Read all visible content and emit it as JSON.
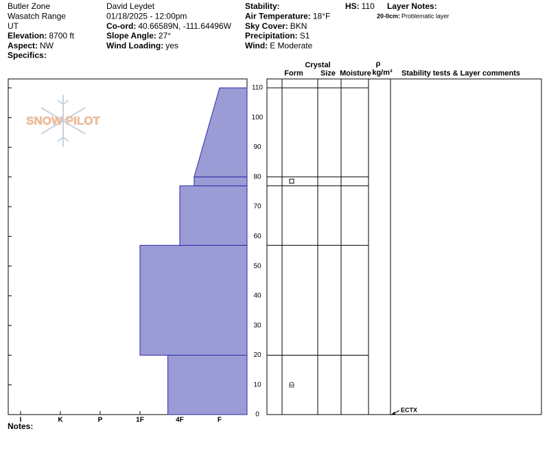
{
  "header": {
    "columns": [
      [
        {
          "text": "Butler Zone"
        },
        {
          "text": "Wasatch Range"
        },
        {
          "text": "UT"
        },
        {
          "label": "Elevation:",
          "value": "8700 ft"
        },
        {
          "label": "Aspect:",
          "value": "NW"
        },
        {
          "label": "Specifics:"
        }
      ],
      [
        {
          "text": "David Leydet"
        },
        {
          "text": "01/18/2025 - 12:00pm"
        },
        {
          "label": "Co-ord:",
          "value": "40.66589N, -111.64496W"
        },
        {
          "label": "Slope Angle:",
          "value": "27°"
        },
        {
          "label": "Wind Loading:",
          "value": "yes"
        }
      ],
      [
        {
          "label": "Stability:"
        },
        {
          "label": "Air Temperature:",
          "value": "18°F"
        },
        {
          "label": "Sky Cover:",
          "value": "BKN"
        },
        {
          "label": "Precipitation:",
          "value": "S1"
        },
        {
          "label": "Wind:",
          "value": "E Moderate"
        }
      ],
      [
        {
          "label": "HS:",
          "value": "110"
        }
      ]
    ],
    "layer_notes": {
      "title": "Layer Notes:",
      "notes": [
        {
          "label": "20-0cm:",
          "value": "Problematic layer"
        }
      ]
    }
  },
  "logo": "SNOW PILOT",
  "table_headers": {
    "crystal": "Crystal",
    "form": "Form",
    "size": "Size",
    "moisture": "Moisture",
    "rho": "ρ",
    "density_unit": "kg/m³",
    "comments": "Stability tests & Layer comments"
  },
  "notes": "Notes:",
  "chart_data": {
    "type": "snow_profile",
    "ylim": [
      0,
      113
    ],
    "yticks": [
      0,
      10,
      20,
      30,
      40,
      50,
      60,
      70,
      80,
      90,
      100,
      110
    ],
    "xlim": [
      6.31,
      0.31
    ],
    "xticks": [
      {
        "value": 6,
        "label": "I"
      },
      {
        "value": 5,
        "label": "K"
      },
      {
        "value": 4,
        "label": "P"
      },
      {
        "value": 3,
        "label": "1F"
      },
      {
        "value": 2,
        "label": "4F"
      },
      {
        "value": 1,
        "label": "F"
      }
    ],
    "color": "#9b9bd6",
    "edge_color": "#2a2aa8",
    "layers": [
      {
        "bottom": 0,
        "top": 20,
        "hardness_bottom": 2.3,
        "hardness_top": 2.3
      },
      {
        "bottom": 20,
        "top": 57,
        "hardness_bottom": 3,
        "hardness_top": 3
      },
      {
        "bottom": 57,
        "top": 77,
        "hardness_bottom": 2,
        "hardness_top": 2
      },
      {
        "bottom": 77,
        "top": 80,
        "hardness_bottom": 1.64,
        "hardness_top": 1.64
      },
      {
        "bottom": 80,
        "top": 110,
        "hardness_bottom": 1.64,
        "hardness_top": 1
      }
    ],
    "stability_tests": [
      {
        "depth": 0,
        "result": "ECTX"
      }
    ]
  }
}
